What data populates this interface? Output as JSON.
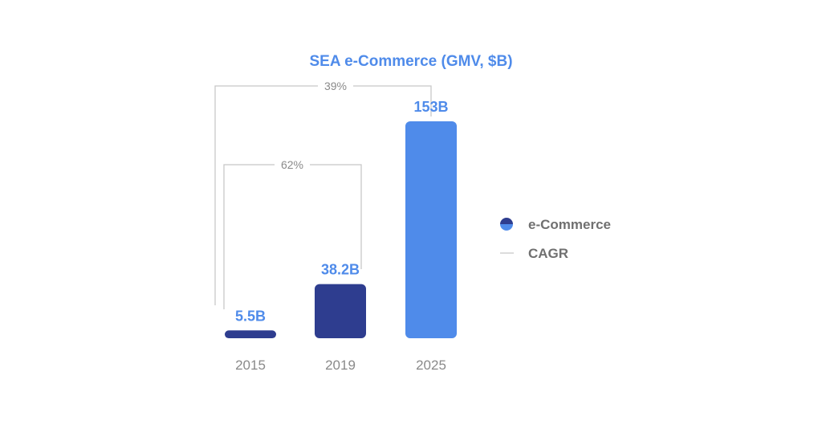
{
  "chart_data": {
    "type": "bar",
    "title": "SEA e-Commerce (GMV, $B)",
    "categories": [
      "2015",
      "2019",
      "2025"
    ],
    "values": [
      5.5,
      38.2,
      153
    ],
    "data_labels": [
      "5.5B",
      "38.2B",
      "153B"
    ],
    "bar_colors": [
      "#2e3d8f",
      "#2e3d8f",
      "#4f8bea"
    ],
    "label_color": "#4f8bea",
    "ylim": [
      0,
      153
    ],
    "grid": false,
    "legend_position": "right",
    "legend": [
      {
        "label": "e-Commerce",
        "icon": "half-circle-icon"
      },
      {
        "label": "CAGR",
        "icon": "line-icon"
      }
    ],
    "cagr_annotations": [
      {
        "label": "39%",
        "from": "2015",
        "to": "2025"
      },
      {
        "label": "62%",
        "from": "2015",
        "to": "2019"
      }
    ],
    "colors": {
      "title": "#4f8bea",
      "dark_blue": "#2e3d8f",
      "light_blue": "#4f8bea",
      "bracket": "#c8c8c8",
      "tick": "#8a8a8a"
    }
  }
}
